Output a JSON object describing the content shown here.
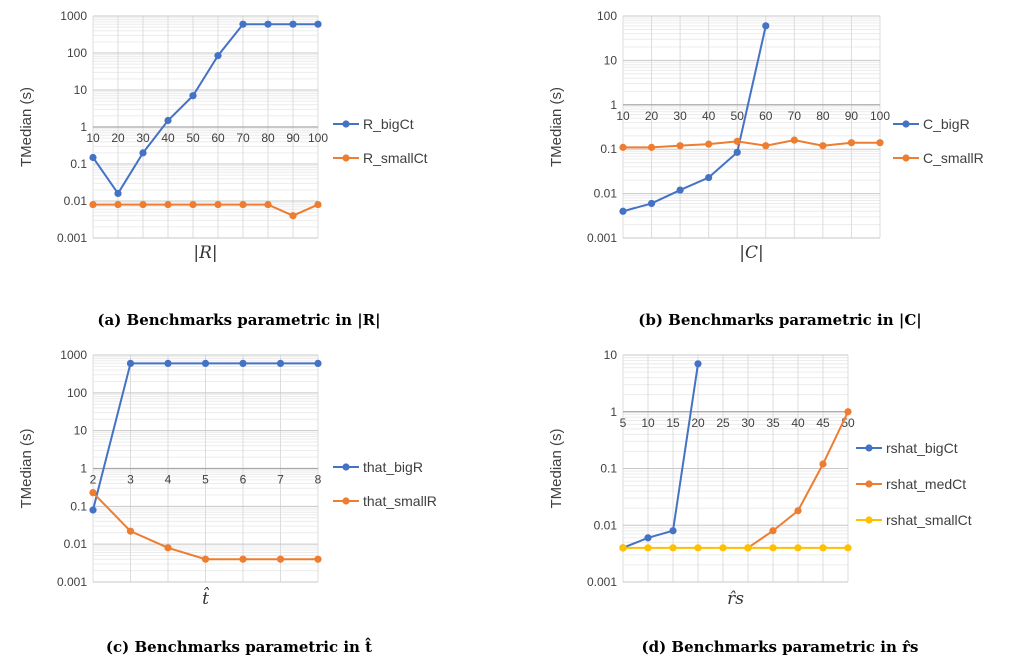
{
  "chart_data": [
    {
      "type": "line",
      "caption": "(a) Benchmarks parametric in |R|",
      "ylabel": "TMedian (s)",
      "xlabel": "|R|",
      "yscale": "log",
      "ylim": [
        0.001,
        1000
      ],
      "y_ticks": [
        "0.001",
        "0.01",
        "0.1",
        "1",
        "10",
        "100",
        "1000"
      ],
      "categories": [
        "10",
        "20",
        "30",
        "40",
        "50",
        "60",
        "70",
        "80",
        "90",
        "100"
      ],
      "series": [
        {
          "name": "R_bigCt",
          "color": "#4472C4",
          "values": [
            0.15,
            0.016,
            0.2,
            1.5,
            7,
            85,
            600,
            600,
            600,
            600
          ]
        },
        {
          "name": "R_smallCt",
          "color": "#ED7D31",
          "values": [
            0.008,
            0.008,
            0.008,
            0.008,
            0.008,
            0.008,
            0.008,
            0.008,
            0.004,
            0.008
          ]
        }
      ],
      "legend_position": "right"
    },
    {
      "type": "line",
      "caption": "(b) Benchmarks parametric in |C|",
      "ylabel": "TMedian (s)",
      "xlabel": "|C|",
      "yscale": "log",
      "ylim": [
        0.001,
        100
      ],
      "y_ticks": [
        "0.001",
        "0.01",
        "0.1",
        "1",
        "10",
        "100"
      ],
      "categories": [
        "10",
        "20",
        "30",
        "40",
        "50",
        "60",
        "70",
        "80",
        "90",
        "100"
      ],
      "series": [
        {
          "name": "C_bigR",
          "color": "#4472C4",
          "values": [
            0.004,
            0.006,
            0.012,
            0.023,
            0.085,
            60,
            null,
            null,
            null,
            null
          ]
        },
        {
          "name": "C_smallR",
          "color": "#ED7D31",
          "values": [
            0.11,
            0.11,
            0.12,
            0.13,
            0.15,
            0.12,
            0.16,
            0.12,
            0.14,
            0.14
          ]
        }
      ],
      "legend_position": "right"
    },
    {
      "type": "line",
      "caption": "(c) Benchmarks parametric in t̂",
      "ylabel": "TMedian (s)",
      "xlabel": "t̂",
      "yscale": "log",
      "ylim": [
        0.001,
        1000
      ],
      "y_ticks": [
        "0.001",
        "0.01",
        "0.1",
        "1",
        "10",
        "100",
        "1000"
      ],
      "categories": [
        "2",
        "3",
        "4",
        "5",
        "6",
        "7",
        "8"
      ],
      "series": [
        {
          "name": "that_bigR",
          "color": "#4472C4",
          "values": [
            0.08,
            600,
            600,
            600,
            600,
            600,
            600
          ]
        },
        {
          "name": "that_smallR",
          "color": "#ED7D31",
          "values": [
            0.23,
            0.022,
            0.008,
            0.004,
            0.004,
            0.004,
            0.004
          ]
        }
      ],
      "legend_position": "right"
    },
    {
      "type": "line",
      "caption": "(d) Benchmarks parametric in r̂s",
      "ylabel": "TMedian (s)",
      "xlabel": "r̂s",
      "yscale": "log",
      "ylim": [
        0.001,
        10
      ],
      "y_ticks": [
        "0.001",
        "0.01",
        "0.1",
        "1",
        "10"
      ],
      "categories": [
        "5",
        "10",
        "15",
        "20",
        "25",
        "30",
        "35",
        "40",
        "45",
        "50"
      ],
      "series": [
        {
          "name": "rshat_bigCt",
          "color": "#4472C4",
          "values": [
            0.004,
            0.006,
            0.008,
            7,
            null,
            null,
            null,
            null,
            null,
            null
          ]
        },
        {
          "name": "rshat_medCt",
          "color": "#ED7D31",
          "values": [
            null,
            null,
            null,
            null,
            null,
            0.004,
            0.008,
            0.018,
            0.12,
            1
          ]
        },
        {
          "name": "rshat_smallCt",
          "color": "#FFC000",
          "values": [
            0.004,
            0.004,
            0.004,
            0.004,
            0.004,
            0.004,
            0.004,
            0.004,
            0.004,
            0.004
          ]
        }
      ],
      "legend_position": "right"
    }
  ]
}
